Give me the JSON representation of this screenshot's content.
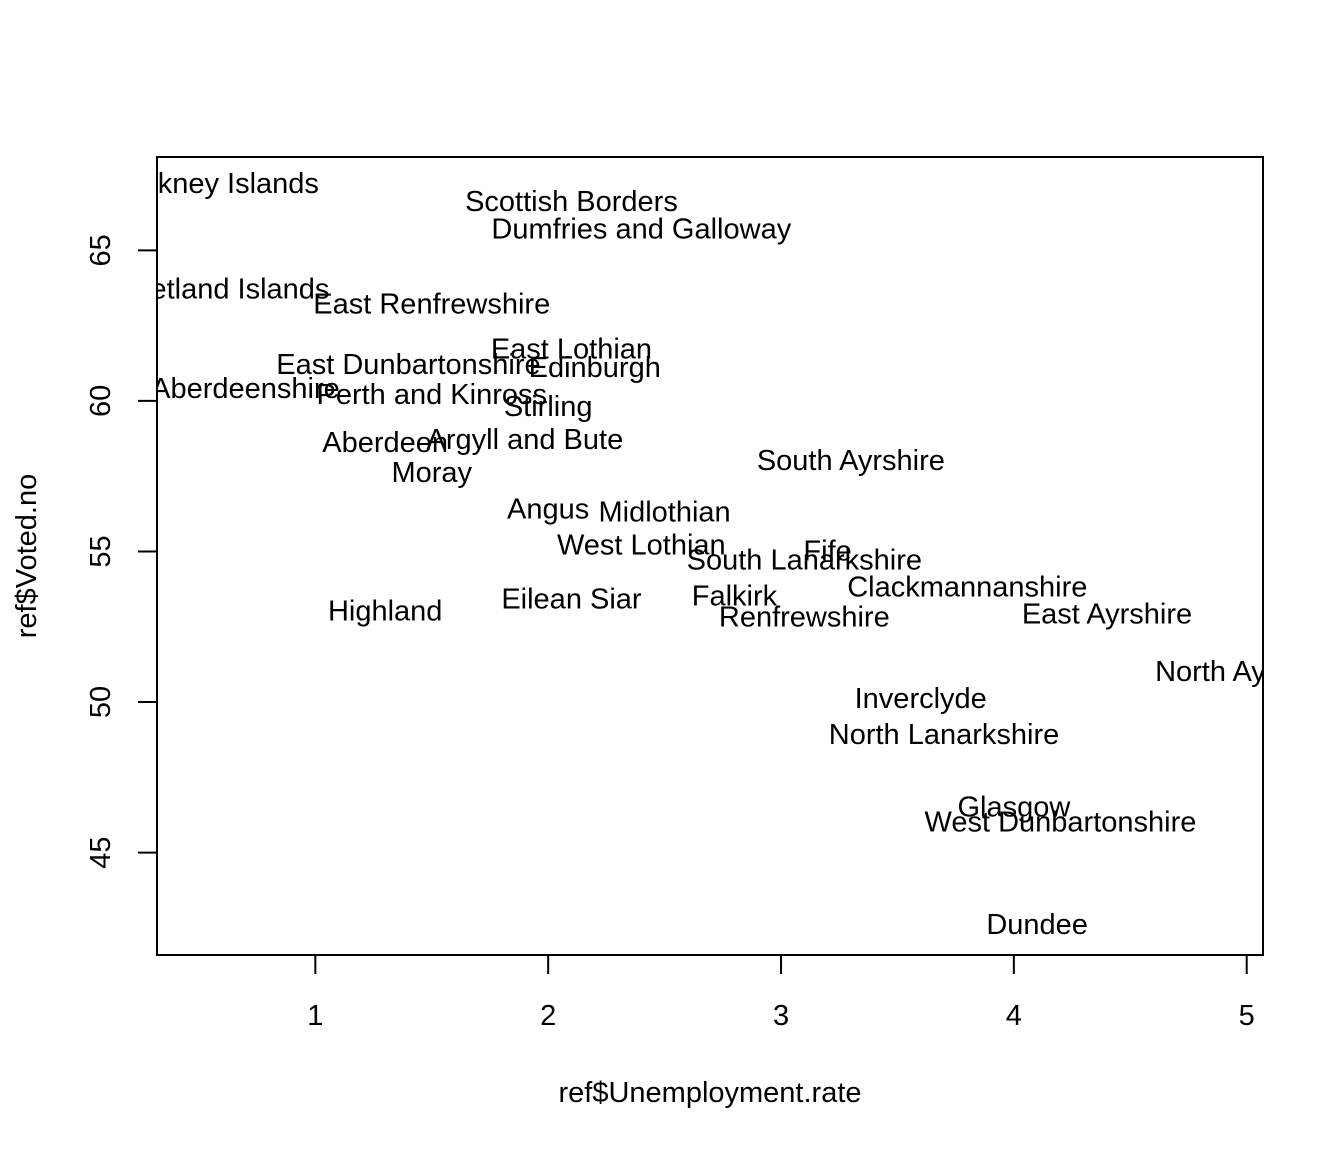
{
  "chart_data": {
    "type": "scatter",
    "xlabel": "ref$Unemployment.rate",
    "ylabel": "ref$Voted.no",
    "xlim": [
      0.32,
      5.07
    ],
    "ylim": [
      41.6,
      68.1
    ],
    "x_ticks": [
      1,
      2,
      3,
      4,
      5
    ],
    "y_ticks": [
      45,
      50,
      55,
      60,
      65
    ],
    "grid": false,
    "points": [
      {
        "label": "Orkney Islands",
        "x": 0.6,
        "y": 67.2
      },
      {
        "label": "Scottish Borders",
        "x": 2.1,
        "y": 66.6
      },
      {
        "label": "Dumfries and Galloway",
        "x": 2.4,
        "y": 65.7
      },
      {
        "label": "Shetland Islands",
        "x": 0.6,
        "y": 63.7
      },
      {
        "label": "East Renfrewshire",
        "x": 1.5,
        "y": 63.2
      },
      {
        "label": "East Lothian",
        "x": 2.1,
        "y": 61.7
      },
      {
        "label": "East Dunbartonshire",
        "x": 1.4,
        "y": 61.2
      },
      {
        "label": "Edinburgh",
        "x": 2.2,
        "y": 61.1
      },
      {
        "label": "Aberdeenshire",
        "x": 0.7,
        "y": 60.4
      },
      {
        "label": "Perth and Kinross",
        "x": 1.5,
        "y": 60.2
      },
      {
        "label": "Stirling",
        "x": 2.0,
        "y": 59.8
      },
      {
        "label": "Aberdeen",
        "x": 1.3,
        "y": 58.6
      },
      {
        "label": "Argyll and Bute",
        "x": 1.9,
        "y": 58.7
      },
      {
        "label": "South Ayrshire",
        "x": 3.3,
        "y": 58.0
      },
      {
        "label": "Moray",
        "x": 1.5,
        "y": 57.6
      },
      {
        "label": "Angus",
        "x": 2.0,
        "y": 56.4
      },
      {
        "label": "Midlothian",
        "x": 2.5,
        "y": 56.3
      },
      {
        "label": "West Lothian",
        "x": 2.4,
        "y": 55.2
      },
      {
        "label": "Fife",
        "x": 3.2,
        "y": 55.0
      },
      {
        "label": "South Lanarkshire",
        "x": 3.1,
        "y": 54.7
      },
      {
        "label": "Clackmannanshire",
        "x": 3.8,
        "y": 53.8
      },
      {
        "label": "Highland",
        "x": 1.3,
        "y": 53.0
      },
      {
        "label": "Eilean Siar",
        "x": 2.1,
        "y": 53.4
      },
      {
        "label": "Falkirk",
        "x": 2.8,
        "y": 53.5
      },
      {
        "label": "Renfrewshire",
        "x": 3.1,
        "y": 52.8
      },
      {
        "label": "East Ayrshire",
        "x": 4.4,
        "y": 52.9
      },
      {
        "label": "North Ayrshire",
        "x": 5.0,
        "y": 51.0
      },
      {
        "label": "Inverclyde",
        "x": 3.6,
        "y": 50.1
      },
      {
        "label": "North Lanarkshire",
        "x": 3.7,
        "y": 48.9
      },
      {
        "label": "Glasgow",
        "x": 4.0,
        "y": 46.5
      },
      {
        "label": "West Dunbartonshire",
        "x": 4.2,
        "y": 46.0
      },
      {
        "label": "Dundee",
        "x": 4.1,
        "y": 42.6
      }
    ]
  }
}
